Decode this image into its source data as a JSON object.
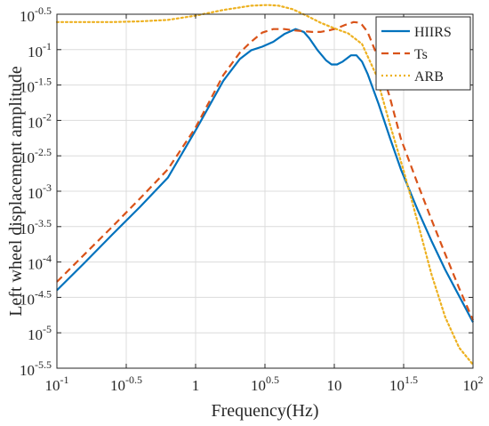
{
  "chart_data": {
    "type": "line",
    "title": "",
    "xlabel": "Frequency(Hz)",
    "ylabel": "Left wheel displacement amplitude",
    "x_scale": "log",
    "y_scale": "log",
    "xlim": [
      0.1,
      100
    ],
    "ylim": [
      3.1623e-06,
      0.31623
    ],
    "grid": true,
    "legend": {
      "position": "top-right"
    },
    "x_ticks": [
      {
        "value": 0.1,
        "base": "10",
        "exp": "-1"
      },
      {
        "value": 0.31623,
        "base": "10",
        "exp": "-0.5"
      },
      {
        "value": 1,
        "base": "1",
        "exp": ""
      },
      {
        "value": 3.1623,
        "base": "10",
        "exp": "0.5"
      },
      {
        "value": 10,
        "base": "10",
        "exp": ""
      },
      {
        "value": 31.623,
        "base": "10",
        "exp": "1.5"
      },
      {
        "value": 100,
        "base": "10",
        "exp": "2"
      }
    ],
    "y_ticks": [
      {
        "value": 0.31623,
        "base": "10",
        "exp": "-0.5"
      },
      {
        "value": 0.1,
        "base": "10",
        "exp": "-1"
      },
      {
        "value": 0.031623,
        "base": "10",
        "exp": "-1.5"
      },
      {
        "value": 0.01,
        "base": "10",
        "exp": "-2"
      },
      {
        "value": 0.0031623,
        "base": "10",
        "exp": "-2.5"
      },
      {
        "value": 0.001,
        "base": "10",
        "exp": "-3"
      },
      {
        "value": 0.00031623,
        "base": "10",
        "exp": "-3.5"
      },
      {
        "value": 0.0001,
        "base": "10",
        "exp": "-4"
      },
      {
        "value": 3.1623e-05,
        "base": "10",
        "exp": "-4.5"
      },
      {
        "value": 1e-05,
        "base": "10",
        "exp": "-5"
      },
      {
        "value": 3.1623e-06,
        "base": "10",
        "exp": "-5.5"
      }
    ],
    "series": [
      {
        "name": "HIIRS",
        "color": "#0072BD",
        "dash": "solid",
        "x": [
          0.1,
          0.1585,
          0.2512,
          0.3981,
          0.631,
          1.0,
          1.585,
          2.089,
          2.512,
          3.02,
          3.631,
          4.365,
          5.248,
          6.026,
          6.607,
          7.586,
          8.71,
          9.55,
          10.47,
          11.48,
          13.18,
          14.45,
          15.85,
          17.38,
          20.89,
          25.12,
          30.2,
          39.81,
          50.12,
          63.1,
          79.43,
          100
        ],
        "y": [
          3.98e-05,
          9.77e-05,
          0.000245,
          0.000603,
          0.00155,
          0.00724,
          0.0363,
          0.0741,
          0.0977,
          0.11,
          0.129,
          0.166,
          0.195,
          0.178,
          0.145,
          0.0977,
          0.0708,
          0.0617,
          0.0617,
          0.0676,
          0.0832,
          0.0832,
          0.0676,
          0.0457,
          0.017,
          0.00575,
          0.00204,
          0.00055,
          0.0002,
          7.76e-05,
          3.31e-05,
          1.41e-05
        ]
      },
      {
        "name": "Ts",
        "color": "#D95319",
        "dash": "dashed",
        "x": [
          0.1,
          0.1585,
          0.2512,
          0.3981,
          0.631,
          1.0,
          1.585,
          2.089,
          2.512,
          3.02,
          3.631,
          4.365,
          5.248,
          6.026,
          6.918,
          7.943,
          9.12,
          10.47,
          12.02,
          13.8,
          15.14,
          15.85,
          17.38,
          19.95,
          25.12,
          30.2,
          39.81,
          50.12,
          63.1,
          79.43,
          100
        ],
        "y": [
          5.25e-05,
          0.000129,
          0.000316,
          0.000794,
          0.00204,
          0.00794,
          0.0437,
          0.0912,
          0.129,
          0.174,
          0.195,
          0.195,
          0.186,
          0.182,
          0.178,
          0.178,
          0.186,
          0.2,
          0.224,
          0.245,
          0.24,
          0.224,
          0.178,
          0.0912,
          0.0214,
          0.0055,
          0.00129,
          0.0004,
          0.000129,
          4.27e-05,
          1.51e-05
        ]
      },
      {
        "name": "ARB",
        "color": "#EDB120",
        "dash": "dotted",
        "x": [
          0.1,
          0.1585,
          0.2512,
          0.3981,
          0.631,
          1.0,
          1.585,
          2.512,
          3.311,
          3.981,
          5.012,
          6.31,
          7.943,
          10.0,
          12.59,
          15.85,
          19.95,
          25.12,
          31.62,
          39.81,
          50.12,
          63.1,
          79.43,
          100
        ],
        "y": [
          0.245,
          0.245,
          0.245,
          0.251,
          0.263,
          0.302,
          0.363,
          0.417,
          0.427,
          0.417,
          0.372,
          0.302,
          0.24,
          0.2,
          0.17,
          0.12,
          0.0447,
          0.00891,
          0.00195,
          0.000372,
          6.76e-05,
          1.66e-05,
          6.17e-06,
          3.55e-06
        ]
      }
    ]
  }
}
